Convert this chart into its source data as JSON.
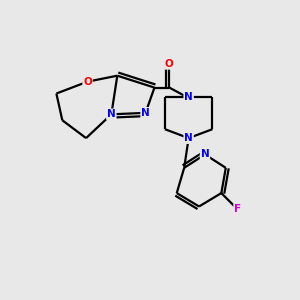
{
  "background_color": "#e8e8e8",
  "bond_color": "#000000",
  "atom_colors": {
    "O": "#ff0000",
    "N": "#0000ff",
    "F": "#cc00cc",
    "C": "#000000"
  },
  "figsize": [
    3.0,
    3.0
  ],
  "dpi": 100
}
